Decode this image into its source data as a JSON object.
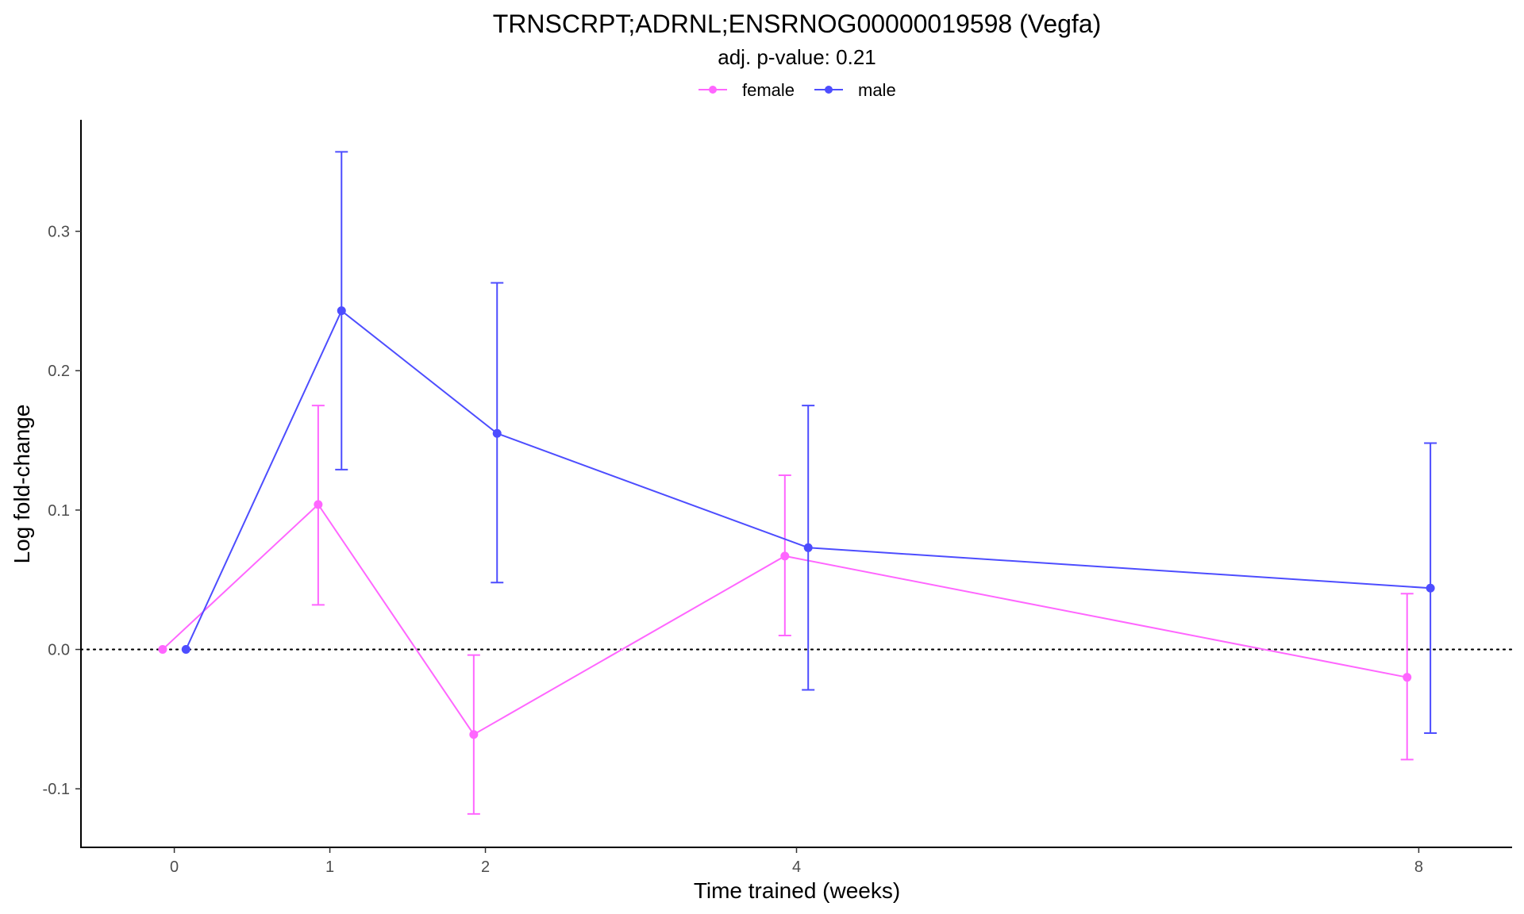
{
  "chart_data": {
    "type": "line",
    "title": "TRNSCRPT;ADRNL;ENSRNOG00000019598 (Vegfa)",
    "subtitle": "adj. p-value: 0.21",
    "xlabel": "Time trained (weeks)",
    "ylabel": "Log fold-change",
    "x_ticks": [
      0,
      1,
      2,
      4,
      8
    ],
    "x_tick_labels": [
      "0",
      "1",
      "2",
      "4",
      "8"
    ],
    "y_ticks": [
      -0.1,
      0.0,
      0.1,
      0.2,
      0.3
    ],
    "y_tick_labels": [
      "-0.1",
      "0.0",
      "0.1",
      "0.2",
      "0.3"
    ],
    "xlim": [
      -0.6,
      8.6
    ],
    "ylim": [
      -0.142,
      0.38
    ],
    "grid": false,
    "reference_line": {
      "y": 0,
      "style": "dotted"
    },
    "legend_position": "top",
    "series": [
      {
        "name": "female",
        "color": "#ff66ff",
        "x": [
          0,
          1,
          2,
          4,
          8
        ],
        "y": [
          0.0,
          0.104,
          -0.061,
          0.067,
          -0.02
        ],
        "lower": [
          0.0,
          0.032,
          -0.118,
          0.01,
          -0.079
        ],
        "upper": [
          0.0,
          0.175,
          -0.004,
          0.125,
          0.04
        ]
      },
      {
        "name": "male",
        "color": "#4d4dff",
        "x": [
          0,
          1,
          2,
          4,
          8
        ],
        "y": [
          0.0,
          0.243,
          0.155,
          0.073,
          0.044
        ],
        "lower": [
          0.0,
          0.129,
          0.048,
          -0.029,
          -0.06
        ],
        "upper": [
          0.0,
          0.357,
          0.263,
          0.175,
          0.148
        ]
      }
    ]
  }
}
